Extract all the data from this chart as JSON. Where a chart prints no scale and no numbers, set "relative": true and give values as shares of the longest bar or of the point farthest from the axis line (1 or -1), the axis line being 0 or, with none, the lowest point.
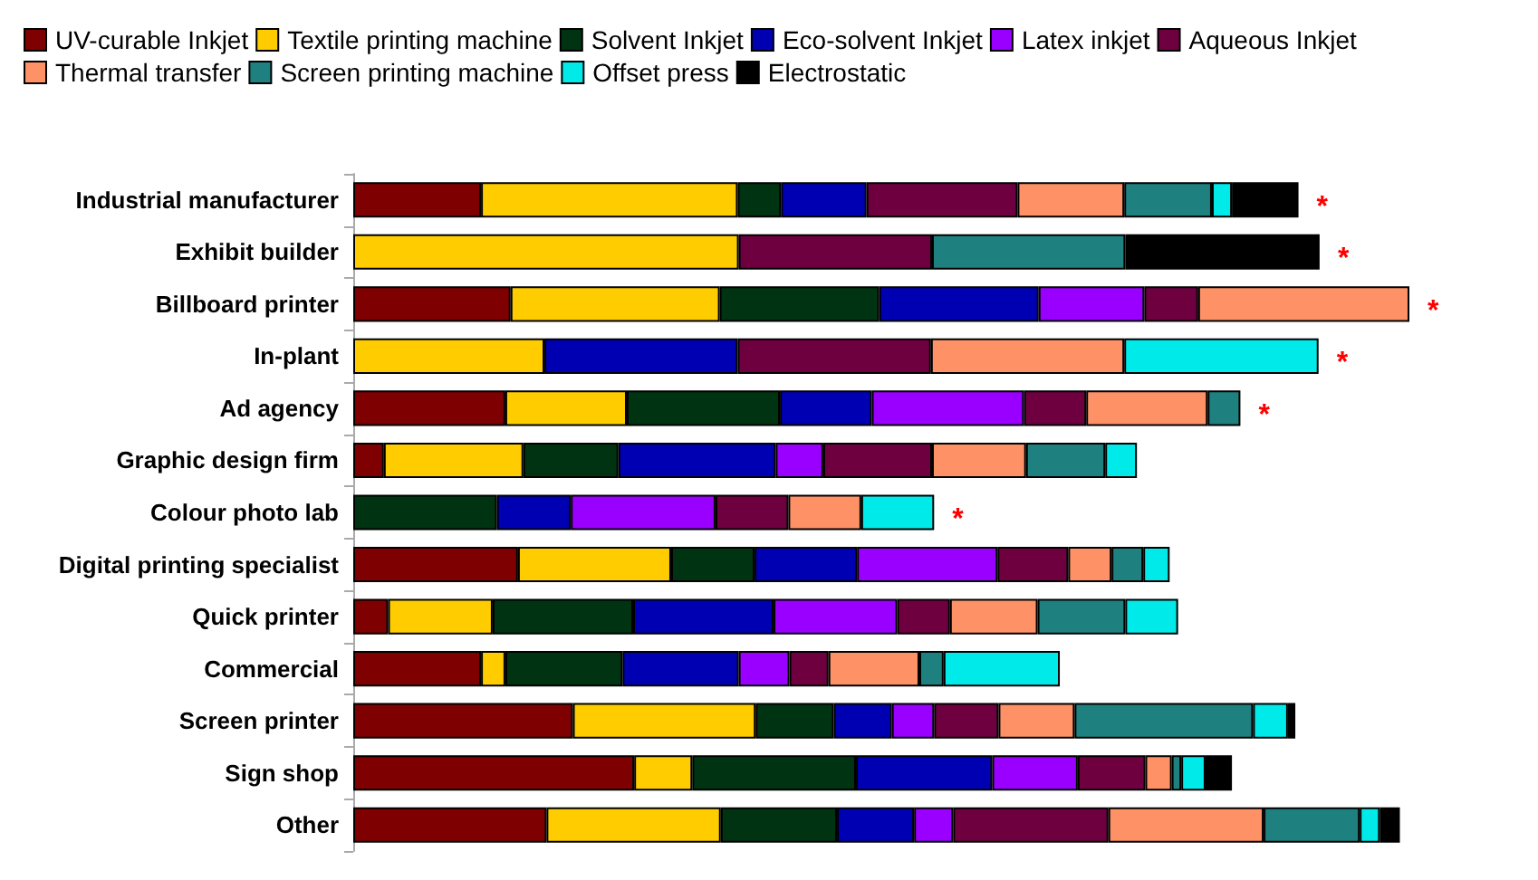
{
  "chart_data": {
    "type": "bar",
    "orientation": "horizontal",
    "stacked": true,
    "relative": true,
    "legend": "top",
    "categories": [
      "Industrial manufacturer",
      "Exhibit builder",
      "Billboard printer",
      "In-plant",
      "Ad agency",
      "Graphic design firm",
      "Colour photo lab",
      "Digital printing specialist",
      "Quick printer",
      "Commercial",
      "Screen printer",
      "Sign shop",
      "Other"
    ],
    "series": [
      {
        "name": "UV-curable Inkjet",
        "color": "#7f0000",
        "values": [
          0.121,
          null,
          0.149,
          null,
          0.144,
          0.029,
          null,
          0.156,
          0.033,
          0.121,
          0.208,
          0.266,
          0.183
        ]
      },
      {
        "name": "Textile printing machine",
        "color": "#ffcc00",
        "values": [
          0.243,
          0.365,
          0.198,
          0.181,
          0.115,
          0.132,
          null,
          0.145,
          0.099,
          0.023,
          0.173,
          0.055,
          0.165
        ]
      },
      {
        "name": "Solvent Inkjet",
        "color": "#003311",
        "values": [
          0.041,
          null,
          0.151,
          null,
          0.145,
          0.09,
          0.136,
          0.079,
          0.133,
          0.111,
          0.074,
          0.155,
          0.11
        ]
      },
      {
        "name": "Eco-solvent Inkjet",
        "color": "#0000b3",
        "values": [
          0.081,
          null,
          0.151,
          0.183,
          0.087,
          0.149,
          0.07,
          0.097,
          0.133,
          0.11,
          0.055,
          0.129,
          0.073
        ]
      },
      {
        "name": "Latex inkjet",
        "color": "#9900ff",
        "values": [
          null,
          null,
          0.1,
          null,
          0.144,
          0.045,
          0.137,
          0.133,
          0.117,
          0.048,
          0.04,
          0.081,
          0.037
        ]
      },
      {
        "name": "Aqueous Inkjet",
        "color": "#6e0040",
        "values": [
          0.143,
          0.183,
          0.051,
          0.183,
          0.059,
          0.103,
          0.069,
          0.067,
          0.05,
          0.037,
          0.061,
          0.064,
          0.147
        ]
      },
      {
        "name": "Thermal transfer",
        "color": "#ff9166",
        "values": [
          0.101,
          null,
          0.2,
          0.183,
          0.115,
          0.089,
          0.069,
          0.041,
          0.083,
          0.086,
          0.072,
          0.025,
          0.147
        ]
      },
      {
        "name": "Screen printing machine",
        "color": "#1f8080",
        "values": [
          0.083,
          0.183,
          null,
          null,
          0.031,
          0.075,
          null,
          0.03,
          0.083,
          0.023,
          0.169,
          0.009,
          0.091
        ]
      },
      {
        "name": "Offset press",
        "color": "#00eaea",
        "values": [
          0.019,
          null,
          null,
          0.184,
          null,
          0.03,
          0.069,
          0.025,
          0.05,
          0.11,
          0.033,
          0.023,
          0.019
        ]
      },
      {
        "name": "Electrostatic",
        "color": "#000000",
        "values": [
          0.063,
          0.184,
          null,
          null,
          null,
          null,
          null,
          null,
          null,
          null,
          0.007,
          0.025,
          0.019
        ]
      }
    ],
    "annotations": [
      {
        "text": "*",
        "x": 0.895,
        "y": "Industrial manufacturer"
      },
      {
        "text": "*",
        "x": 0.915,
        "y": "Exhibit builder"
      },
      {
        "text": "*",
        "x": 1,
        "y": "Billboard printer"
      },
      {
        "text": "*",
        "x": 0.914,
        "y": "In-plant"
      },
      {
        "text": "*",
        "x": 0.84,
        "y": "Ad agency"
      },
      {
        "text": "*",
        "x": 0.55,
        "y": "Colour photo lab"
      }
    ]
  }
}
